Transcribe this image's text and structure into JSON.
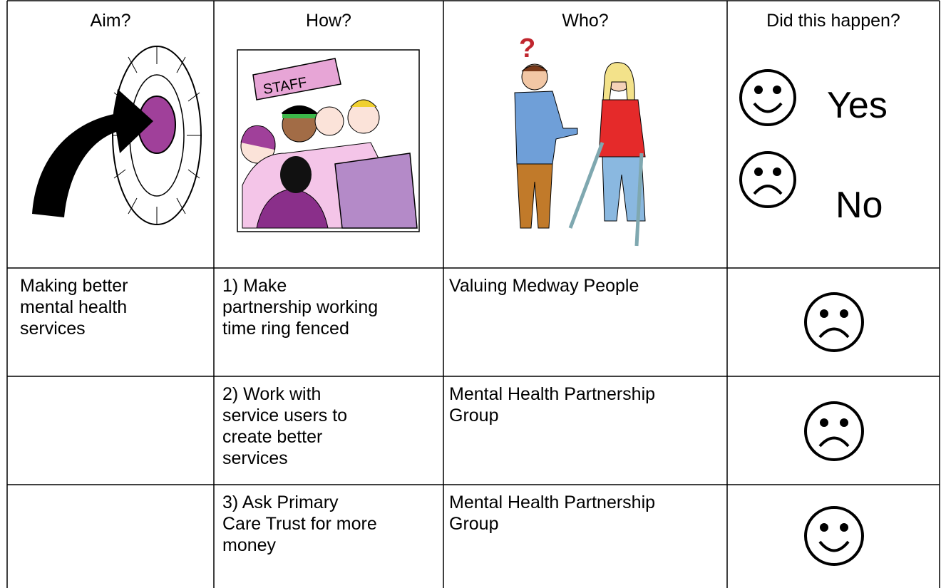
{
  "table": {
    "headers": {
      "aim": "Aim?",
      "how": "How?",
      "who": "Who?",
      "happened": "Did this happen?",
      "yes": "Yes",
      "no": "No"
    },
    "rows": [
      {
        "aim": [
          "Making better",
          "mental health",
          "services"
        ],
        "how": [
          "1) Make",
          "partnership working",
          "time ring fenced"
        ],
        "who": [
          "Valuing Medway People"
        ]
      },
      {
        "how": [
          "2) Work with",
          "service users to",
          "create better",
          "services"
        ],
        "who": [
          "Mental Health Partnership",
          "Group"
        ]
      },
      {
        "how": [
          "3) Ask Primary",
          "Care Trust for more",
          "money"
        ],
        "who": [
          "Mental Health Partnership",
          "Group"
        ]
      }
    ]
  }
}
